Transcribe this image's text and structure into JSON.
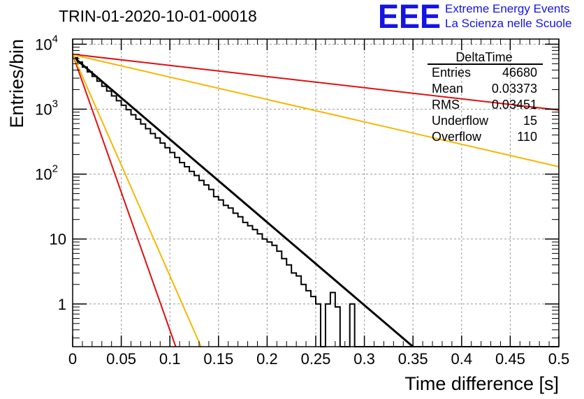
{
  "chart_data": {
    "type": "line",
    "title": "TRIN-01-2020-10-01-00018",
    "xlabel": "Time difference [s]",
    "ylabel": "Entries/bin",
    "xlim": [
      0,
      0.5
    ],
    "ylim": [
      0.22,
      12000
    ],
    "yscale": "log",
    "grid": true,
    "x_ticks": [
      "0",
      "0.05",
      "0.1",
      "0.15",
      "0.2",
      "0.25",
      "0.3",
      "0.35",
      "0.4",
      "0.45",
      "0.5"
    ],
    "y_ticks": [
      {
        "label": "10^4",
        "value": 10000
      },
      {
        "label": "10^3",
        "value": 1000
      },
      {
        "label": "10^2",
        "value": 100
      },
      {
        "label": "10",
        "value": 10
      },
      {
        "label": "1",
        "value": 1
      }
    ],
    "histogram": {
      "name": "DeltaTime",
      "bin_width": 0.005,
      "values": [
        6200,
        5300,
        4450,
        3750,
        3200,
        2700,
        2250,
        1900,
        1600,
        1350,
        1150,
        980,
        820,
        700,
        590,
        500,
        420,
        360,
        300,
        255,
        215,
        180,
        150,
        130,
        110,
        95,
        80,
        68,
        58,
        45,
        40,
        33,
        30,
        25,
        22,
        18,
        16,
        14,
        12,
        10,
        9,
        8,
        6.5,
        5,
        4,
        3,
        2.7,
        2,
        1.6,
        1.3,
        1,
        0.5,
        1,
        1.5,
        0.9,
        0.7,
        0.6,
        1,
        0.5,
        0.5,
        0.5,
        0.5,
        0.5,
        0.5,
        0.5,
        0.5,
        0.5,
        0.5,
        0.5,
        0.5,
        0.5,
        0.5,
        0.5,
        0.5,
        0.5,
        0.5,
        0.5,
        0.5,
        0.5,
        0.5,
        0.5,
        0.5,
        0.5,
        0.5,
        0.5,
        0.5,
        0.5,
        0.5,
        0.5,
        0.5,
        0.5,
        0.5,
        0.5,
        0.5,
        0.5,
        0.5,
        0.5,
        0.5,
        0.5,
        0.5
      ]
    },
    "fits": [
      {
        "color": "#000000",
        "points": [
          [
            0,
            6500
          ],
          [
            0.35,
            0.22
          ]
        ]
      },
      {
        "color": "#e01010",
        "points": [
          [
            0,
            7000
          ],
          [
            0.5,
            970
          ]
        ]
      },
      {
        "color": "#f5b800",
        "points": [
          [
            0,
            6900
          ],
          [
            0.5,
            130
          ]
        ]
      },
      {
        "color": "#e01010",
        "points": [
          [
            0,
            7000
          ],
          [
            0.106,
            0.22
          ]
        ]
      },
      {
        "color": "#f5b800",
        "points": [
          [
            0,
            7000
          ],
          [
            0.132,
            0.22
          ]
        ]
      }
    ]
  },
  "stats_box": {
    "title": "DeltaTime",
    "rows": [
      {
        "label": "Entries",
        "value": "46680"
      },
      {
        "label": "Mean",
        "value": "0.03373"
      },
      {
        "label": "RMS",
        "value": "0.03451"
      },
      {
        "label": "Underflow",
        "value": "15"
      },
      {
        "label": "Overflow",
        "value": "110"
      }
    ]
  },
  "logo": {
    "mark": "EEE",
    "line1": "Extreme Energy Events",
    "line2": "La Scienza nelle Scuole"
  }
}
